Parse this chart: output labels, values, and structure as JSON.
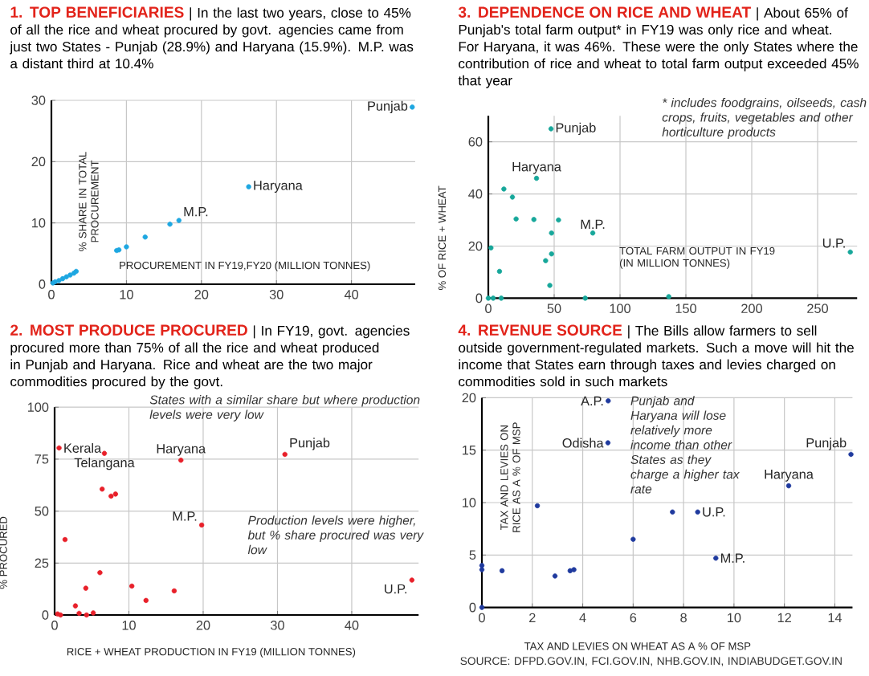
{
  "chart_data": [
    {
      "type": "scatter",
      "title": "1. TOP BENEFICIARIES",
      "subtitle": "| In the last two years, close to 45% of all the rice and wheat procured by govt. agencies came from just two States - Punjab (28.9%) and Haryana (15.9%). M.P. was a distant third at 10.4%",
      "xlabel": "PROCUREMENT IN FY19,FY20 (MILLION TONNES)",
      "ylabel": "% SHARE IN TOTAL PROCUREMENT",
      "x": [
        0.2,
        0.5,
        1,
        1.5,
        2,
        2.5,
        3,
        3.3,
        8.7,
        9,
        10,
        12.5,
        15.8,
        17,
        26.3,
        48.1
      ],
      "values": [
        0.2,
        0.4,
        0.6,
        0.9,
        1.2,
        1.5,
        1.8,
        2.1,
        5.5,
        5.6,
        6.1,
        7.7,
        9.8,
        10.4,
        15.9,
        28.9
      ],
      "color": "#1ea7e1",
      "xlim": [
        0,
        48.5
      ],
      "ylim": [
        0,
        30
      ],
      "xticks": [
        0,
        10,
        20,
        30,
        40
      ],
      "yticks": [
        0,
        10,
        20,
        30
      ],
      "grid": true,
      "marker": "circle",
      "annotations": [
        {
          "text": "Punjab",
          "x": 48.1,
          "y": 28.9
        },
        {
          "text": "Haryana",
          "x": 26.3,
          "y": 15.9
        },
        {
          "text": "M.P.",
          "x": 17,
          "y": 10.4
        }
      ]
    },
    {
      "type": "scatter",
      "title": "2. MOST PRODUCE PROCURED",
      "subtitle": "| In FY19, govt. agencies procured more than 75% of all the rice and wheat produced in Punjab and Haryana. Rice and wheat are the two major commodities procured by the govt.",
      "xlabel": "RICE + WHEAT PRODUCTION IN FY19 (MILLION TONNES)",
      "ylabel": "% PROCURED",
      "x": [
        0.6,
        6.7,
        17,
        31,
        6.4,
        7.6,
        8.2,
        19.8,
        1.4,
        6.1,
        4.2,
        10.4,
        12.3,
        16.1,
        2.8,
        3.3,
        5.2,
        4.3,
        0.4,
        0.8,
        48.1
      ],
      "values": [
        80.4,
        77.8,
        74.5,
        77.3,
        60.6,
        57.2,
        58.2,
        43.3,
        36.3,
        20.4,
        12.9,
        13.9,
        7,
        11.6,
        4.4,
        0.8,
        1,
        0,
        0.5,
        0,
        16.8
      ],
      "color": "#e8202a",
      "xlim": [
        0,
        49
      ],
      "ylim": [
        0,
        100
      ],
      "xticks": [
        0,
        10,
        20,
        30,
        40
      ],
      "yticks": [
        0,
        25,
        50,
        75,
        100
      ],
      "grid": true,
      "marker": "circle",
      "annotations": [
        {
          "text": "Kerala",
          "x": 0.6,
          "y": 80.4
        },
        {
          "text": "Telangana",
          "x": 6.7,
          "y": 77.8
        },
        {
          "text": "Haryana",
          "x": 17,
          "y": 74.5
        },
        {
          "text": "Punjab",
          "x": 31,
          "y": 77.3
        },
        {
          "text": "M.P.",
          "x": 19.8,
          "y": 43.3
        },
        {
          "text": "U.P.",
          "x": 48.1,
          "y": 16.8
        },
        "States with a similar share but where production levels were very low",
        "Production levels were higher, but % share procured was very low"
      ]
    },
    {
      "type": "scatter",
      "title": "3. DEPENDENCE ON RICE AND WHEAT",
      "subtitle": "| About 65% of Punjab's total farm output* in FY19 was only rice and wheat. For Haryana, it was 46%. These were the only States where the contribution of rice and wheat to total farm output exceeded 45% that year",
      "xlabel": "TOTAL FARM OUTPUT IN FY19 (IN MILLION TONNES)",
      "ylabel": "% OF RICE + WHEAT",
      "x": [
        47.6,
        36.6,
        11.8,
        18.3,
        21.1,
        34.6,
        53.3,
        48,
        79.3,
        2,
        48,
        43.5,
        8.5,
        46.7,
        0,
        3.7,
        9.8,
        73.6,
        137,
        274.8
      ],
      "values": [
        65,
        46,
        41.9,
        38.8,
        30.4,
        30.2,
        30,
        25,
        25,
        19.3,
        17,
        14.4,
        10.3,
        4.9,
        0,
        0,
        0,
        0,
        0.6,
        17.7
      ],
      "color": "#17a79a",
      "xlim": [
        0,
        280
      ],
      "ylim": [
        0,
        70
      ],
      "xticks": [
        0,
        50,
        100,
        150,
        200,
        250
      ],
      "yticks": [
        0,
        20,
        40,
        60
      ],
      "grid": true,
      "marker": "circle",
      "annotations": [
        {
          "text": "Punjab",
          "x": 47.6,
          "y": 65
        },
        {
          "text": "Haryana",
          "x": 36.6,
          "y": 46
        },
        {
          "text": "M.P.",
          "x": 79.3,
          "y": 25
        },
        {
          "text": "U.P.",
          "x": 274.8,
          "y": 17.7
        },
        "* includes foodgrains, oilseeds, cash crops, fruits, vegetables and other horticulture products"
      ]
    },
    {
      "type": "scatter",
      "title": "4. REVENUE SOURCE",
      "subtitle": "| The Bills allow farmers to sell outside government-regulated markets. Such a move will hit the income that States earn through taxes and levies charged on commodities sold in such markets",
      "xlabel": "TAX AND LEVIES ON WHEAT AS A % OF MSP",
      "ylabel": "TAX AND LEVIES ON RICE AS A % OF MSP",
      "x": [
        5.01,
        5,
        2.2,
        6,
        7.56,
        8.56,
        9.28,
        12.17,
        14.64,
        0.8,
        0,
        0,
        2.9,
        3.5,
        3.65,
        0
      ],
      "values": [
        19.7,
        15.7,
        9.7,
        6.5,
        9.1,
        9.1,
        4.7,
        11.6,
        14.6,
        3.5,
        4,
        3.6,
        3,
        3.5,
        3.6,
        0
      ],
      "color": "#1f3a9e",
      "xlim": [
        0,
        14.7
      ],
      "ylim": [
        0,
        20
      ],
      "xticks": [
        0,
        2,
        4,
        6,
        8,
        10,
        12,
        14
      ],
      "yticks": [
        0,
        5,
        10,
        15,
        20
      ],
      "grid": true,
      "marker": "circle",
      "annotations": [
        {
          "text": "A.P.",
          "x": 5.01,
          "y": 19.7
        },
        {
          "text": "Odisha",
          "x": 5,
          "y": 15.7
        },
        {
          "text": "U.P.",
          "x": 8.56,
          "y": 9.1
        },
        {
          "text": "M.P.",
          "x": 9.28,
          "y": 4.7
        },
        {
          "text": "Haryana",
          "x": 12.17,
          "y": 11.6
        },
        {
          "text": "Punjab",
          "x": 14.64,
          "y": 14.6
        },
        "Punjab and Haryana will lose relatively more income than other States as they charge a higher tax rate",
        "SOURCE: DFPD.GOV.IN, FCI.GOV.IN, NHB.GOV.IN, INDIABUDGET.GOV.IN"
      ]
    }
  ]
}
